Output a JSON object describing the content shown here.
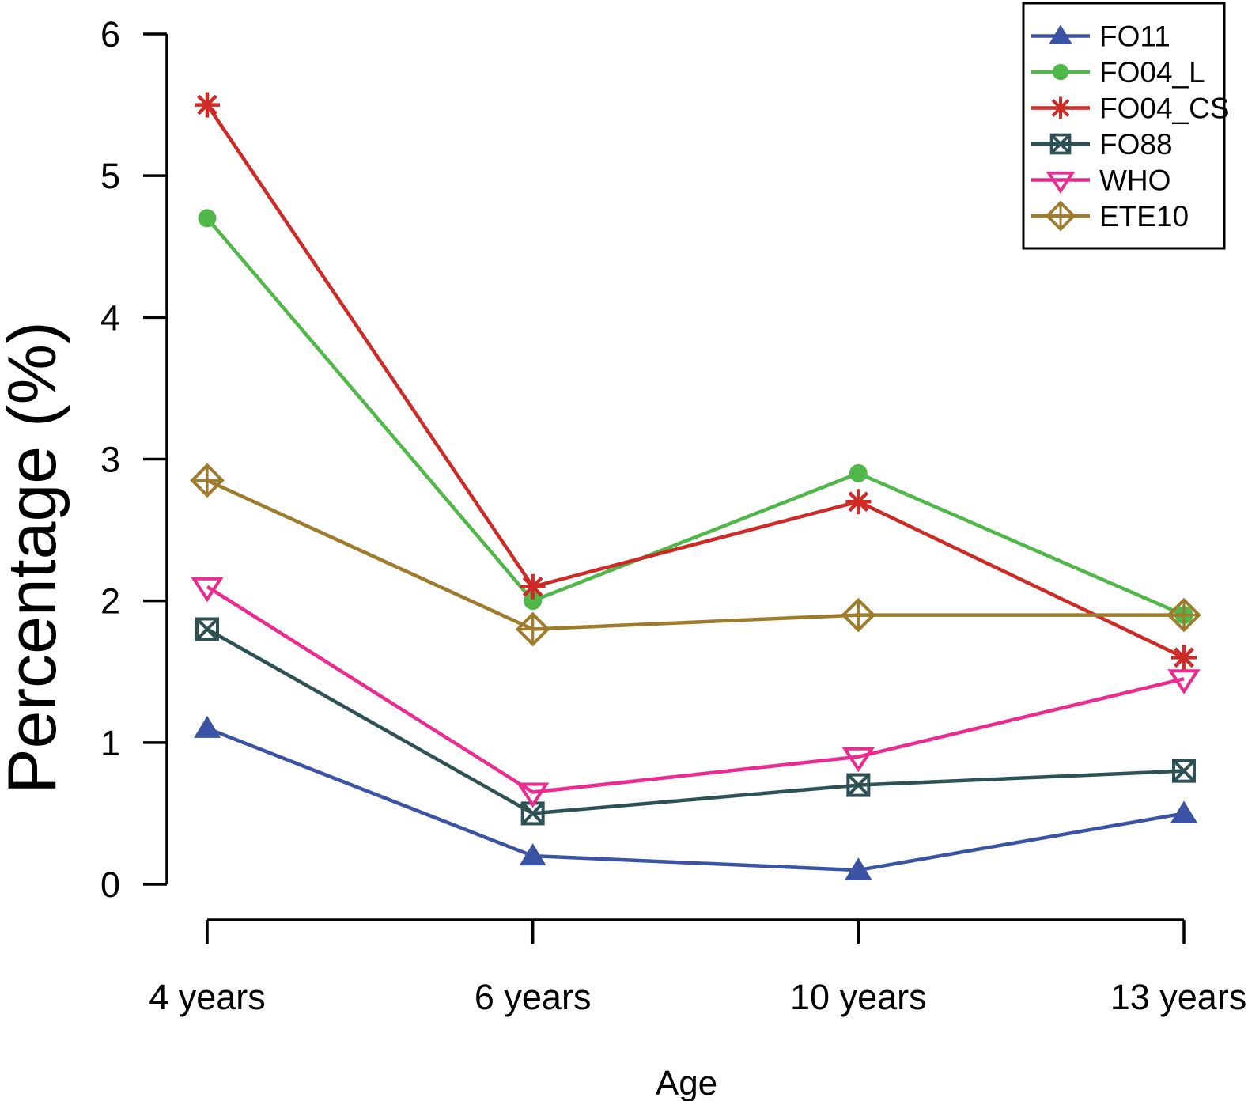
{
  "chart_data": {
    "type": "line",
    "title": "",
    "xlabel": "Age",
    "ylabel": "Percentage (%)",
    "categories": [
      "4 years",
      "6 years",
      "10 years",
      "13 years"
    ],
    "ylim": [
      0,
      6
    ],
    "yticks": [
      0,
      1,
      2,
      3,
      4,
      5,
      6
    ],
    "grid": false,
    "legend_position": "top-right",
    "axis_color": "#000000",
    "background_color": "#ffffff",
    "series": [
      {
        "name": "FO11",
        "color": "#3A53A4",
        "marker": "triangle-up-filled",
        "values": [
          1.1,
          0.2,
          0.1,
          0.5
        ]
      },
      {
        "name": "FO04_L",
        "color": "#4FB848",
        "marker": "circle-filled",
        "values": [
          4.7,
          2.0,
          2.9,
          1.9
        ]
      },
      {
        "name": "FO04_CS",
        "color": "#CE2B27",
        "marker": "asterisk",
        "values": [
          5.5,
          2.1,
          2.7,
          1.6
        ]
      },
      {
        "name": "FO88",
        "color": "#2E5156",
        "marker": "square-x",
        "values": [
          1.8,
          0.5,
          0.7,
          0.8
        ]
      },
      {
        "name": "WHO",
        "color": "#EC2B90",
        "marker": "triangle-down-open",
        "values": [
          2.1,
          0.65,
          0.9,
          1.45
        ]
      },
      {
        "name": "ETE10",
        "color": "#9E7C2C",
        "marker": "diamond-plus",
        "values": [
          2.85,
          1.8,
          1.9,
          1.9
        ]
      }
    ]
  }
}
